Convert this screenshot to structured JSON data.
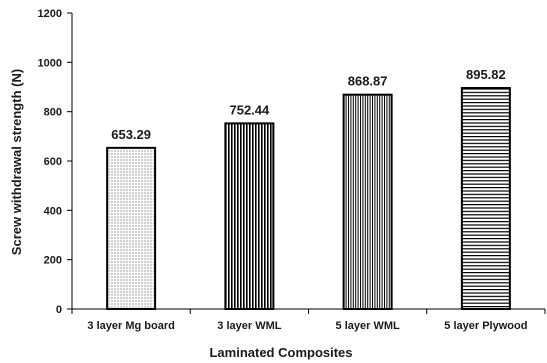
{
  "chart_data": {
    "type": "bar",
    "categories": [
      "3 layer Mg board",
      "3 layer WML",
      "5 layer WML",
      "5 layer Plywood"
    ],
    "values": [
      653.29,
      752.44,
      868.87,
      895.82
    ],
    "data_labels": [
      "653.29",
      "752.44",
      "868.87",
      "895.82"
    ],
    "xlabel": "Laminated Composites",
    "ylabel": "Screw withdrawal strength  (N)",
    "ylim": [
      0,
      1200
    ],
    "yticks": [
      0,
      200,
      400,
      600,
      800,
      1000,
      1200
    ],
    "ytick_labels": [
      "0",
      "200",
      "400",
      "600",
      "800",
      "1000",
      "1200"
    ],
    "grid": false,
    "legend": "none",
    "bar_fill": "#ffffff",
    "bar_stroke": "#000000",
    "bar_patterns": [
      "dots",
      "vertical-lines-thick",
      "vertical-lines-thin",
      "horizontal-lines"
    ]
  }
}
